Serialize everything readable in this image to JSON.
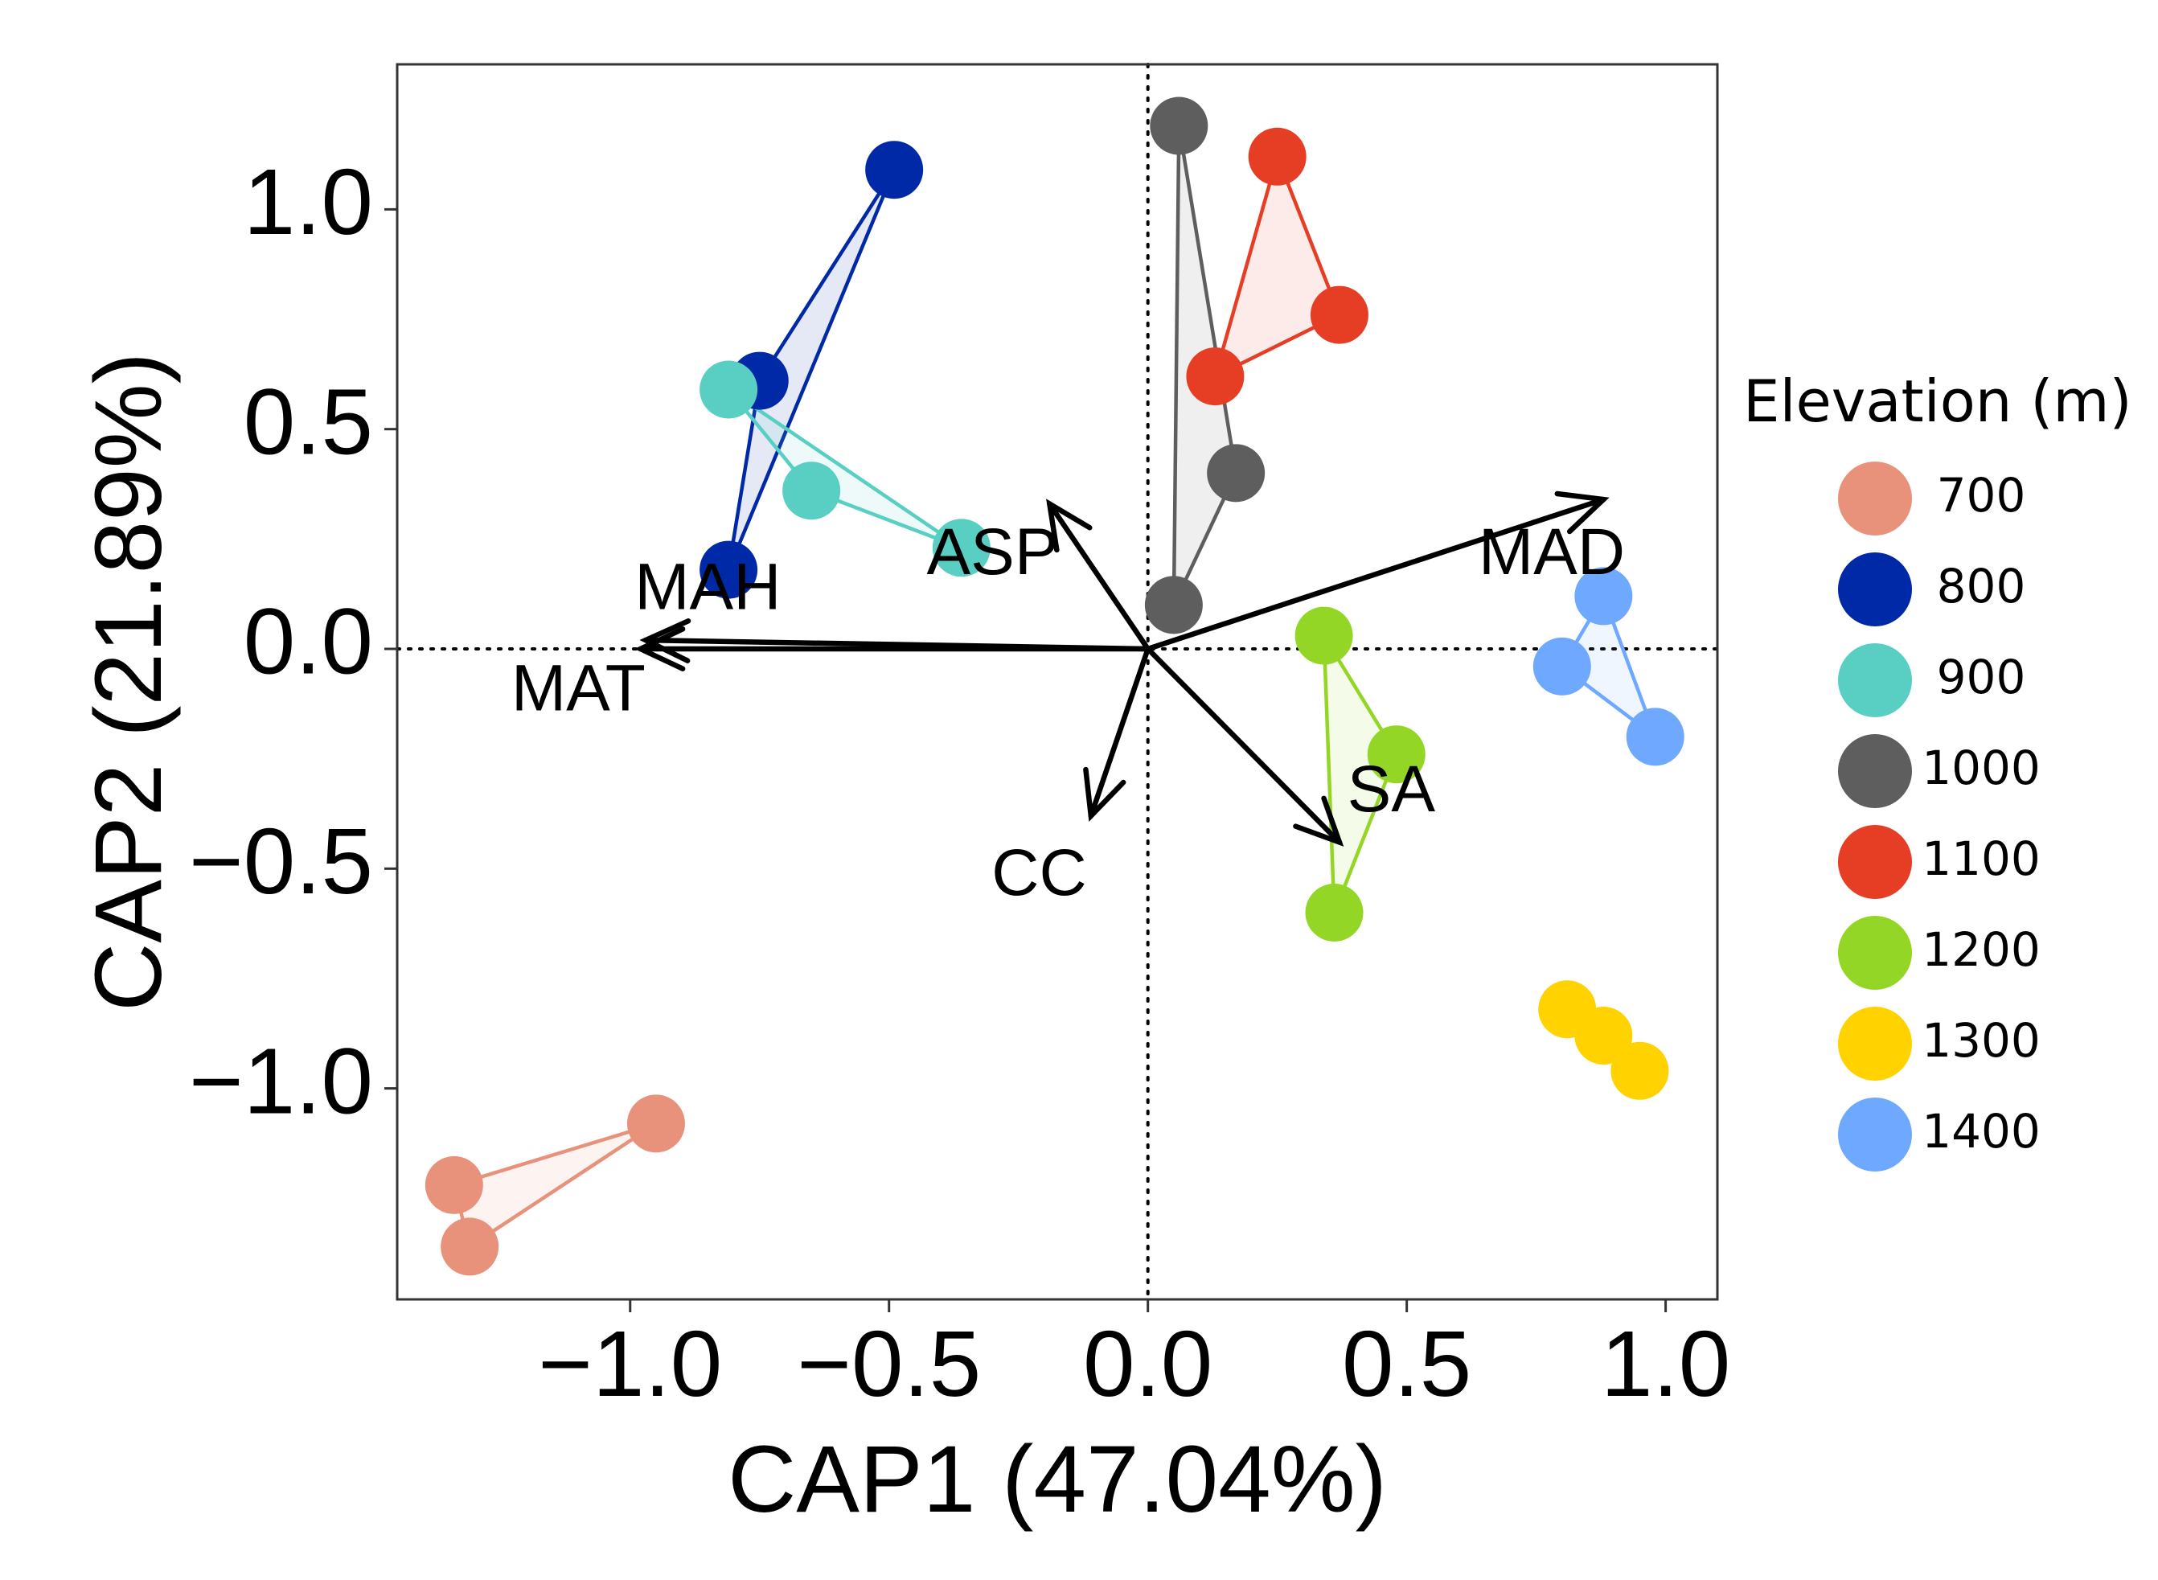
{
  "chart_data": {
    "type": "scatter",
    "subtype": "CAP ordination biplot",
    "xlabel": "CAP1 (47.04%)",
    "ylabel": "CAP2 (21.89%)",
    "xlim": [
      -1.45,
      1.1
    ],
    "ylim": [
      -1.48,
      1.33
    ],
    "xticks": [
      -1.0,
      -0.5,
      0.0,
      0.5,
      1.0
    ],
    "xtick_labels": [
      "−1.0",
      "−0.5",
      "0.0",
      "0.5",
      "1.0"
    ],
    "yticks": [
      -1.0,
      -0.5,
      0.0,
      0.5,
      1.0
    ],
    "ytick_labels": [
      "−1.0",
      "−0.5",
      "0.0",
      "0.5",
      "1.0"
    ],
    "grid": false,
    "reference_lines": {
      "x": 0,
      "y": 0,
      "style": "dotted"
    },
    "legend": {
      "title": "Elevation (m)",
      "placement": "right"
    },
    "series": [
      {
        "name": "700",
        "color": "#E8927C",
        "points": [
          [
            -0.95,
            -1.08
          ],
          [
            -1.34,
            -1.22
          ],
          [
            -1.31,
            -1.36
          ]
        ]
      },
      {
        "name": "800",
        "color": "#0029A8",
        "points": [
          [
            -0.49,
            1.09
          ],
          [
            -0.75,
            0.61
          ],
          [
            -0.81,
            0.18
          ]
        ]
      },
      {
        "name": "900",
        "color": "#58CFC2",
        "points": [
          [
            -0.81,
            0.59
          ],
          [
            -0.65,
            0.36
          ],
          [
            -0.36,
            0.23
          ]
        ]
      },
      {
        "name": "1000",
        "color": "#5E5E5E",
        "points": [
          [
            0.06,
            1.19
          ],
          [
            0.17,
            0.4
          ],
          [
            0.05,
            0.1
          ]
        ]
      },
      {
        "name": "1100",
        "color": "#E63E24",
        "points": [
          [
            0.25,
            1.12
          ],
          [
            0.37,
            0.76
          ],
          [
            0.13,
            0.62
          ]
        ]
      },
      {
        "name": "1200",
        "color": "#94D625",
        "points": [
          [
            0.34,
            0.03
          ],
          [
            0.48,
            -0.24
          ],
          [
            0.36,
            -0.6
          ]
        ]
      },
      {
        "name": "1300",
        "color": "#FFD200",
        "points": [
          [
            0.81,
            -0.82
          ],
          [
            0.88,
            -0.88
          ],
          [
            0.95,
            -0.96
          ]
        ]
      },
      {
        "name": "1400",
        "color": "#6EA8FF",
        "points": [
          [
            0.88,
            0.12
          ],
          [
            0.8,
            -0.04
          ],
          [
            0.98,
            -0.2
          ]
        ]
      }
    ],
    "vectors": [
      {
        "name": "MAH",
        "x": -0.97,
        "y": 0.02
      },
      {
        "name": "MAT",
        "x": -0.98,
        "y": 0.0
      },
      {
        "name": "ASP",
        "x": -0.19,
        "y": 0.33
      },
      {
        "name": "MAD",
        "x": 0.88,
        "y": 0.34
      },
      {
        "name": "CC",
        "x": -0.11,
        "y": -0.38
      },
      {
        "name": "SA",
        "x": 0.37,
        "y": -0.44
      }
    ],
    "vector_labels": [
      {
        "name": "MAH",
        "x": -0.85,
        "y": 0.13
      },
      {
        "name": "MAT",
        "x": -1.1,
        "y": -0.1
      },
      {
        "name": "ASP",
        "x": -0.3,
        "y": 0.21
      },
      {
        "name": "MAD",
        "x": 0.78,
        "y": 0.21
      },
      {
        "name": "CC",
        "x": -0.21,
        "y": -0.52
      },
      {
        "name": "SA",
        "x": 0.47,
        "y": -0.33
      }
    ]
  },
  "colors": {
    "panel_bg": "#FFFFFF",
    "axis": "#333333",
    "vector": "#000000",
    "text": "#000000"
  }
}
